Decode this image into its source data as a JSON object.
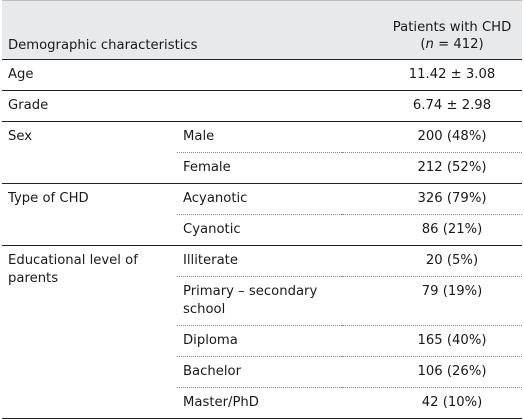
{
  "table": {
    "header": {
      "col1": "Demographic characteristics",
      "col3_line1": "Patients with CHD",
      "col3_n_prefix": "(",
      "col3_n_var": "n",
      "col3_n_suffix": " = 412)"
    },
    "rows": {
      "age": {
        "label": "Age",
        "value": "11.42 ± 3.08"
      },
      "grade": {
        "label": "Grade",
        "value": "6.74 ± 2.98"
      },
      "sex": {
        "label": "Sex",
        "male": {
          "label": "Male",
          "value": "200 (48%)"
        },
        "female": {
          "label": "Female",
          "value": "212 (52%)"
        }
      },
      "chd": {
        "label": "Type of CHD",
        "acyanotic": {
          "label": "Acyanotic",
          "value": "326 (79%)"
        },
        "cyanotic": {
          "label": "Cyanotic",
          "value": "86 (21%)"
        }
      },
      "edu": {
        "label": "Educational level of parents",
        "illiterate": {
          "label": "Illiterate",
          "value": "20 (5%)"
        },
        "primary": {
          "label": "Primary – secondary school",
          "value": "79 (19%)"
        },
        "diploma": {
          "label": "Diploma",
          "value": "165 (40%)"
        },
        "bachelor": {
          "label": "Bachelor",
          "value": "106 (26%)"
        },
        "master": {
          "label": "Master/PhD",
          "value": "42 (10%)"
        }
      }
    }
  }
}
